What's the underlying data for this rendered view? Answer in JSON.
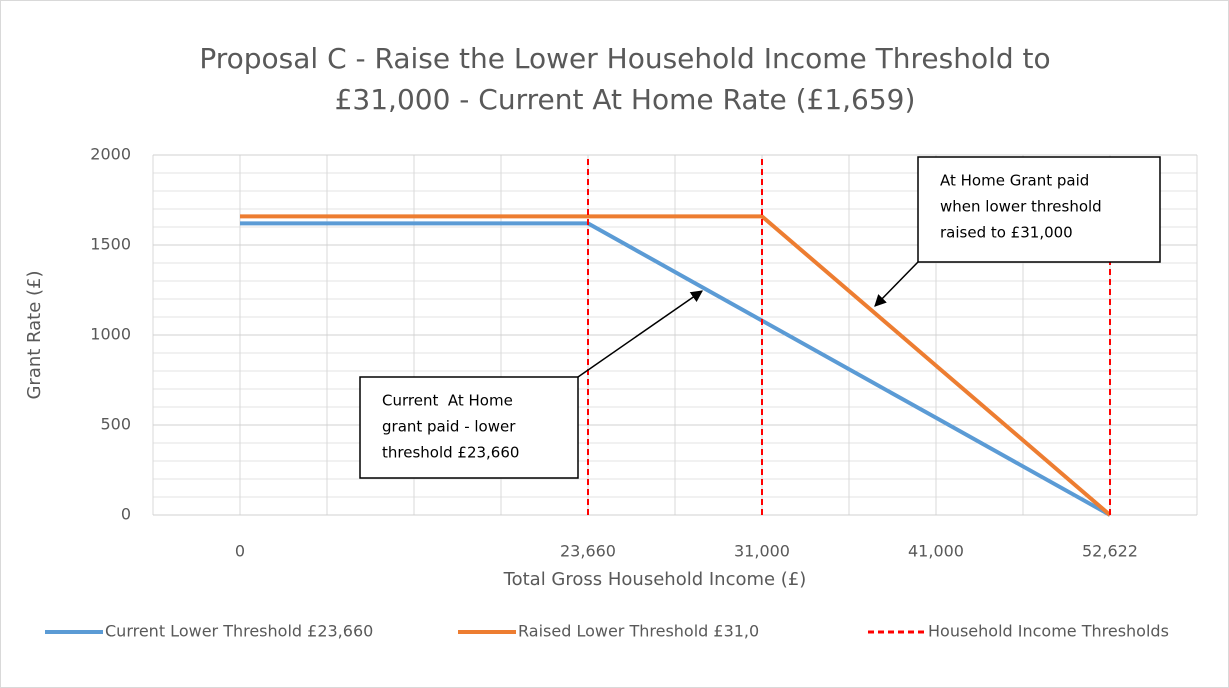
{
  "chart_data": {
    "type": "line",
    "title": [
      "Proposal C - Raise the Lower Household Income Threshold to",
      "£31,000 - Current At Home Rate (£1,659)"
    ],
    "x_label": "Total Gross Household Income (£)",
    "y_label": "Grant Rate (£)",
    "categories": [
      "0",
      null,
      "23,660",
      "31,000",
      "41,000",
      "52,622"
    ],
    "series": [
      {
        "name": "Current Lower Threshold £23,660",
        "color": "#5b9bd5",
        "values": [
          1620,
          1620,
          1620,
          1080,
          540,
          0
        ]
      },
      {
        "name": "Raised Lower Threshold £31,0",
        "color": "#ed7d31",
        "values": [
          1659,
          1659,
          1659,
          1659,
          830,
          0
        ]
      },
      {
        "name": "Household Income Thresholds",
        "color": "#ff0000",
        "dashed": true,
        "values": [
          null,
          null,
          2000,
          2000,
          null,
          2000
        ]
      }
    ],
    "ylim": [
      0,
      2000
    ],
    "yticks": [
      0,
      500,
      1000,
      1500,
      2000
    ],
    "grid": true,
    "annotations": [
      {
        "lines": [
          "Current  At Home",
          "grant paid - lower",
          "threshold £23,660"
        ]
      },
      {
        "lines": [
          "At Home Grant paid",
          "when lower threshold",
          "raised to £31,000"
        ]
      }
    ],
    "legend": "bottom"
  }
}
